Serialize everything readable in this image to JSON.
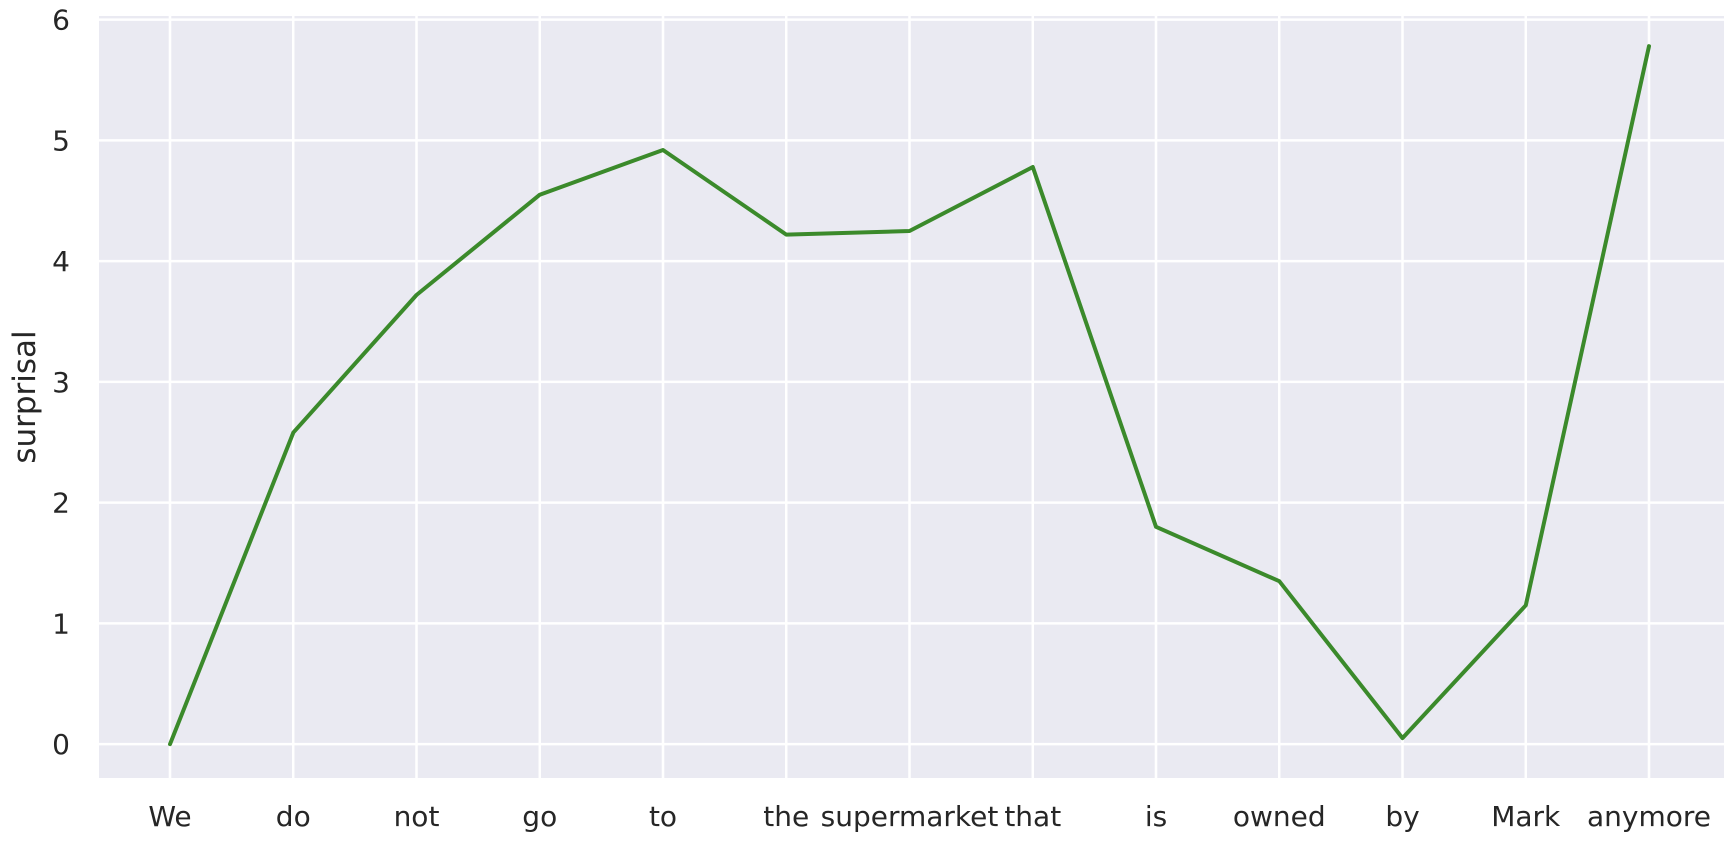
{
  "chart_data": {
    "type": "line",
    "ylabel": "surprisal",
    "xlabel": "",
    "categories": [
      "We",
      "do",
      "not",
      "go",
      "to",
      "the",
      "supermarket",
      "that",
      "is",
      "owned",
      "by",
      "Mark",
      "anymore"
    ],
    "series": [
      {
        "values": [
          0.0,
          2.58,
          3.72,
          4.55,
          4.92,
          4.22,
          4.25,
          4.78,
          1.8,
          1.35,
          0.05,
          1.15,
          5.78
        ]
      }
    ],
    "yticks": [
      0,
      1,
      2,
      3,
      4,
      5,
      6
    ],
    "ylim": [
      -0.28,
      6.03
    ],
    "grid": true,
    "colors": {
      "line": "#3b8a2b",
      "background": "#eaeaf2",
      "grid": "#ffffff"
    }
  }
}
